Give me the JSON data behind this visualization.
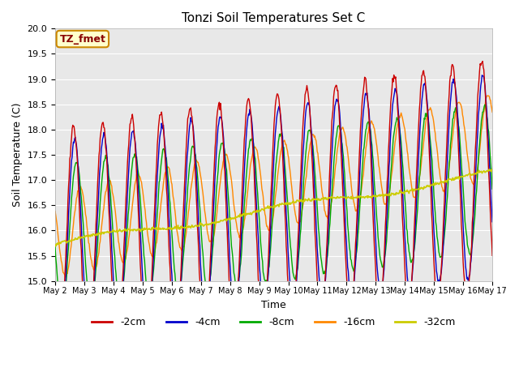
{
  "title": "Tonzi Soil Temperatures Set C",
  "xlabel": "Time",
  "ylabel": "Soil Temperature (C)",
  "ylim": [
    15.0,
    20.0
  ],
  "yticks": [
    15.0,
    15.5,
    16.0,
    16.5,
    17.0,
    17.5,
    18.0,
    18.5,
    19.0,
    19.5,
    20.0
  ],
  "colors": {
    "-2cm": "#cc0000",
    "-4cm": "#0000cc",
    "-8cm": "#00aa00",
    "-16cm": "#ff8800",
    "-32cm": "#cccc00"
  },
  "annotation_text": "TZ_fmet",
  "annotation_box_facecolor": "#ffffcc",
  "annotation_box_edgecolor": "#cc8800",
  "annotation_text_color": "#880000",
  "background_color": "#e8e8e8",
  "grid_color": "#ffffff",
  "xtick_labels": [
    "May 2",
    "May 3",
    "May 4",
    "May 5",
    "May 6",
    "May 7",
    "May 8",
    "May 9",
    "May 10",
    "May 11",
    "May 12",
    "May 13",
    "May 14",
    "May 15",
    "May 16",
    "May 17"
  ],
  "xtick_positions": [
    2,
    3,
    4,
    5,
    6,
    7,
    8,
    9,
    10,
    11,
    12,
    13,
    14,
    15,
    16,
    17
  ],
  "n_per_day": 48,
  "n_days": 15
}
